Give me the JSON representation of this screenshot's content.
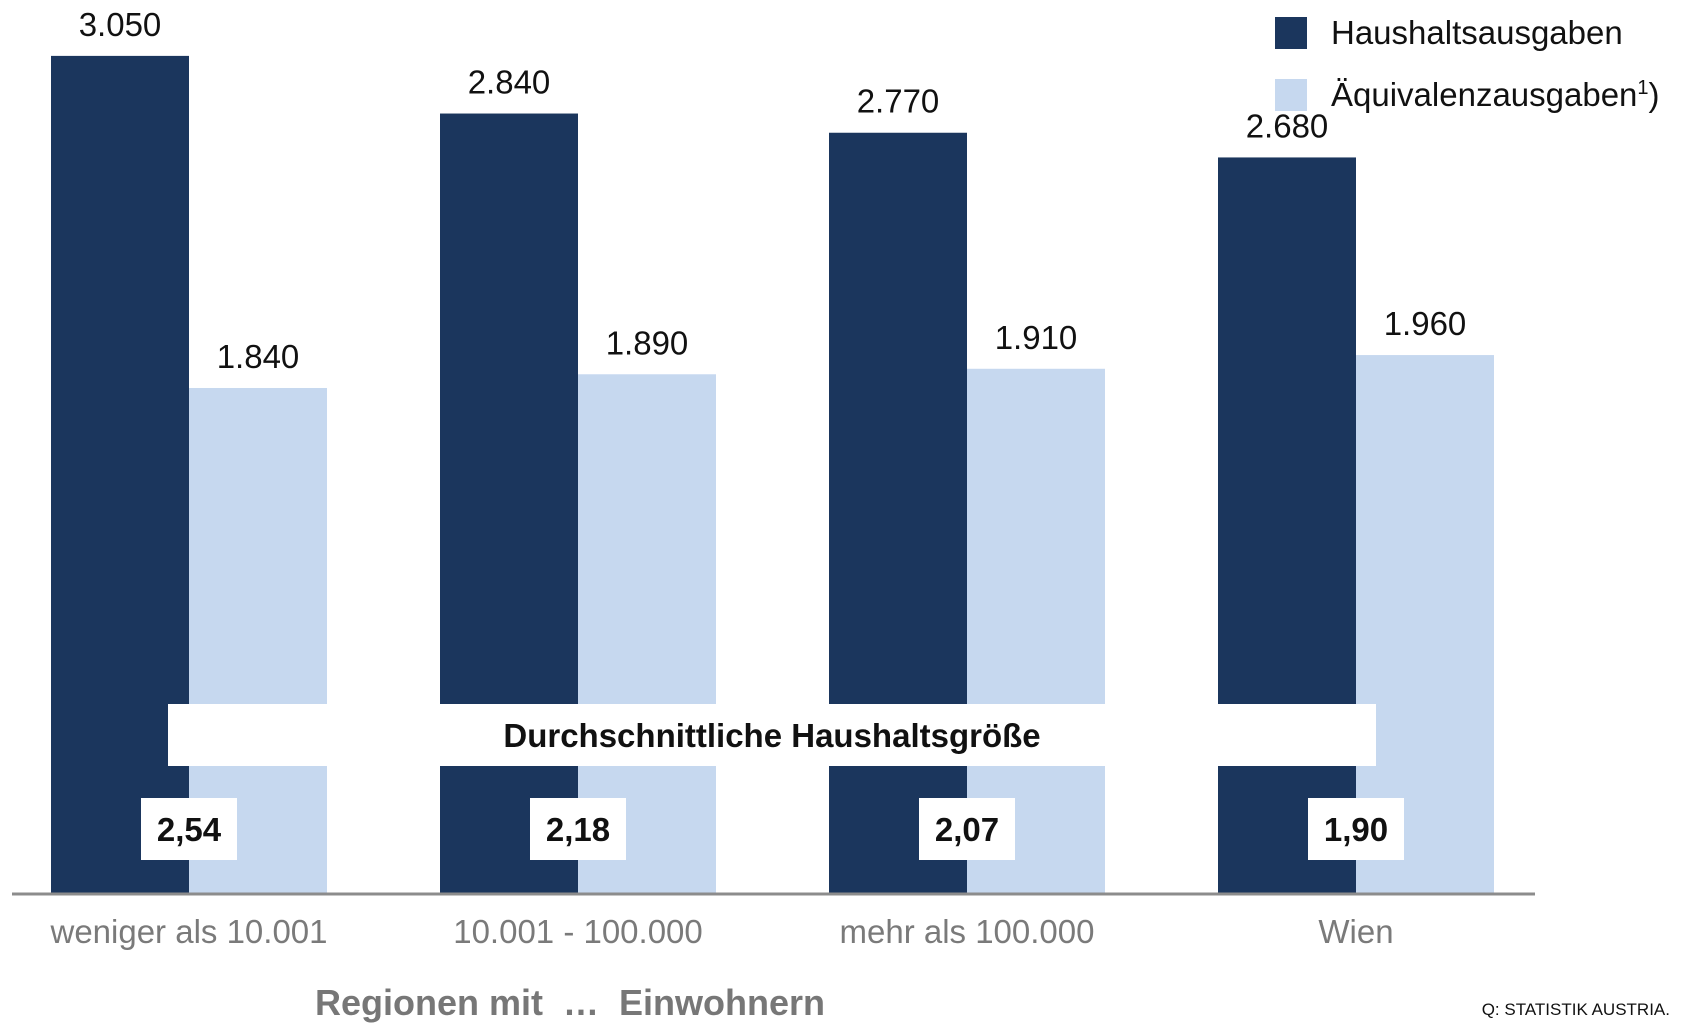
{
  "chart_data": {
    "type": "bar",
    "categories": [
      "weniger als 10.001",
      "10.001 - 100.000",
      "mehr als 100.000",
      "Wien"
    ],
    "series": [
      {
        "name": "Haushaltsausgaben",
        "values": [
          3050,
          2840,
          2770,
          2680
        ],
        "labels": [
          "3.050",
          "2.840",
          "2.770",
          "2.680"
        ],
        "color": "#1b365d"
      },
      {
        "name": "Äquivalenzausgaben",
        "values": [
          1840,
          1890,
          1910,
          1960
        ],
        "labels": [
          "1.840",
          "1.890",
          "1.910",
          "1.960"
        ],
        "color": "#c6d8ef"
      }
    ],
    "household_size": {
      "title": "Durchschnittliche Haushaltsgröße",
      "values": [
        2.54,
        2.18,
        2.07,
        1.9
      ],
      "labels": [
        "2,54",
        "2,18",
        "2,07",
        "1,90"
      ]
    },
    "xlabel": "Regionen mit  …  Einwohnern",
    "ylim": [
      0,
      3250
    ],
    "grid": false,
    "legend_position": "top-right",
    "axis_color": "#8c8c8c",
    "tick_color": "#7a7a7a"
  },
  "legend": {
    "items": [
      {
        "label": "Haushaltsausgaben",
        "color": "#1b365d"
      },
      {
        "label": "Äquivalenzausgaben",
        "sup": "1",
        "suffix": ")",
        "color": "#c6d8ef"
      }
    ]
  },
  "source": "Q: STATISTIK AUSTRIA."
}
